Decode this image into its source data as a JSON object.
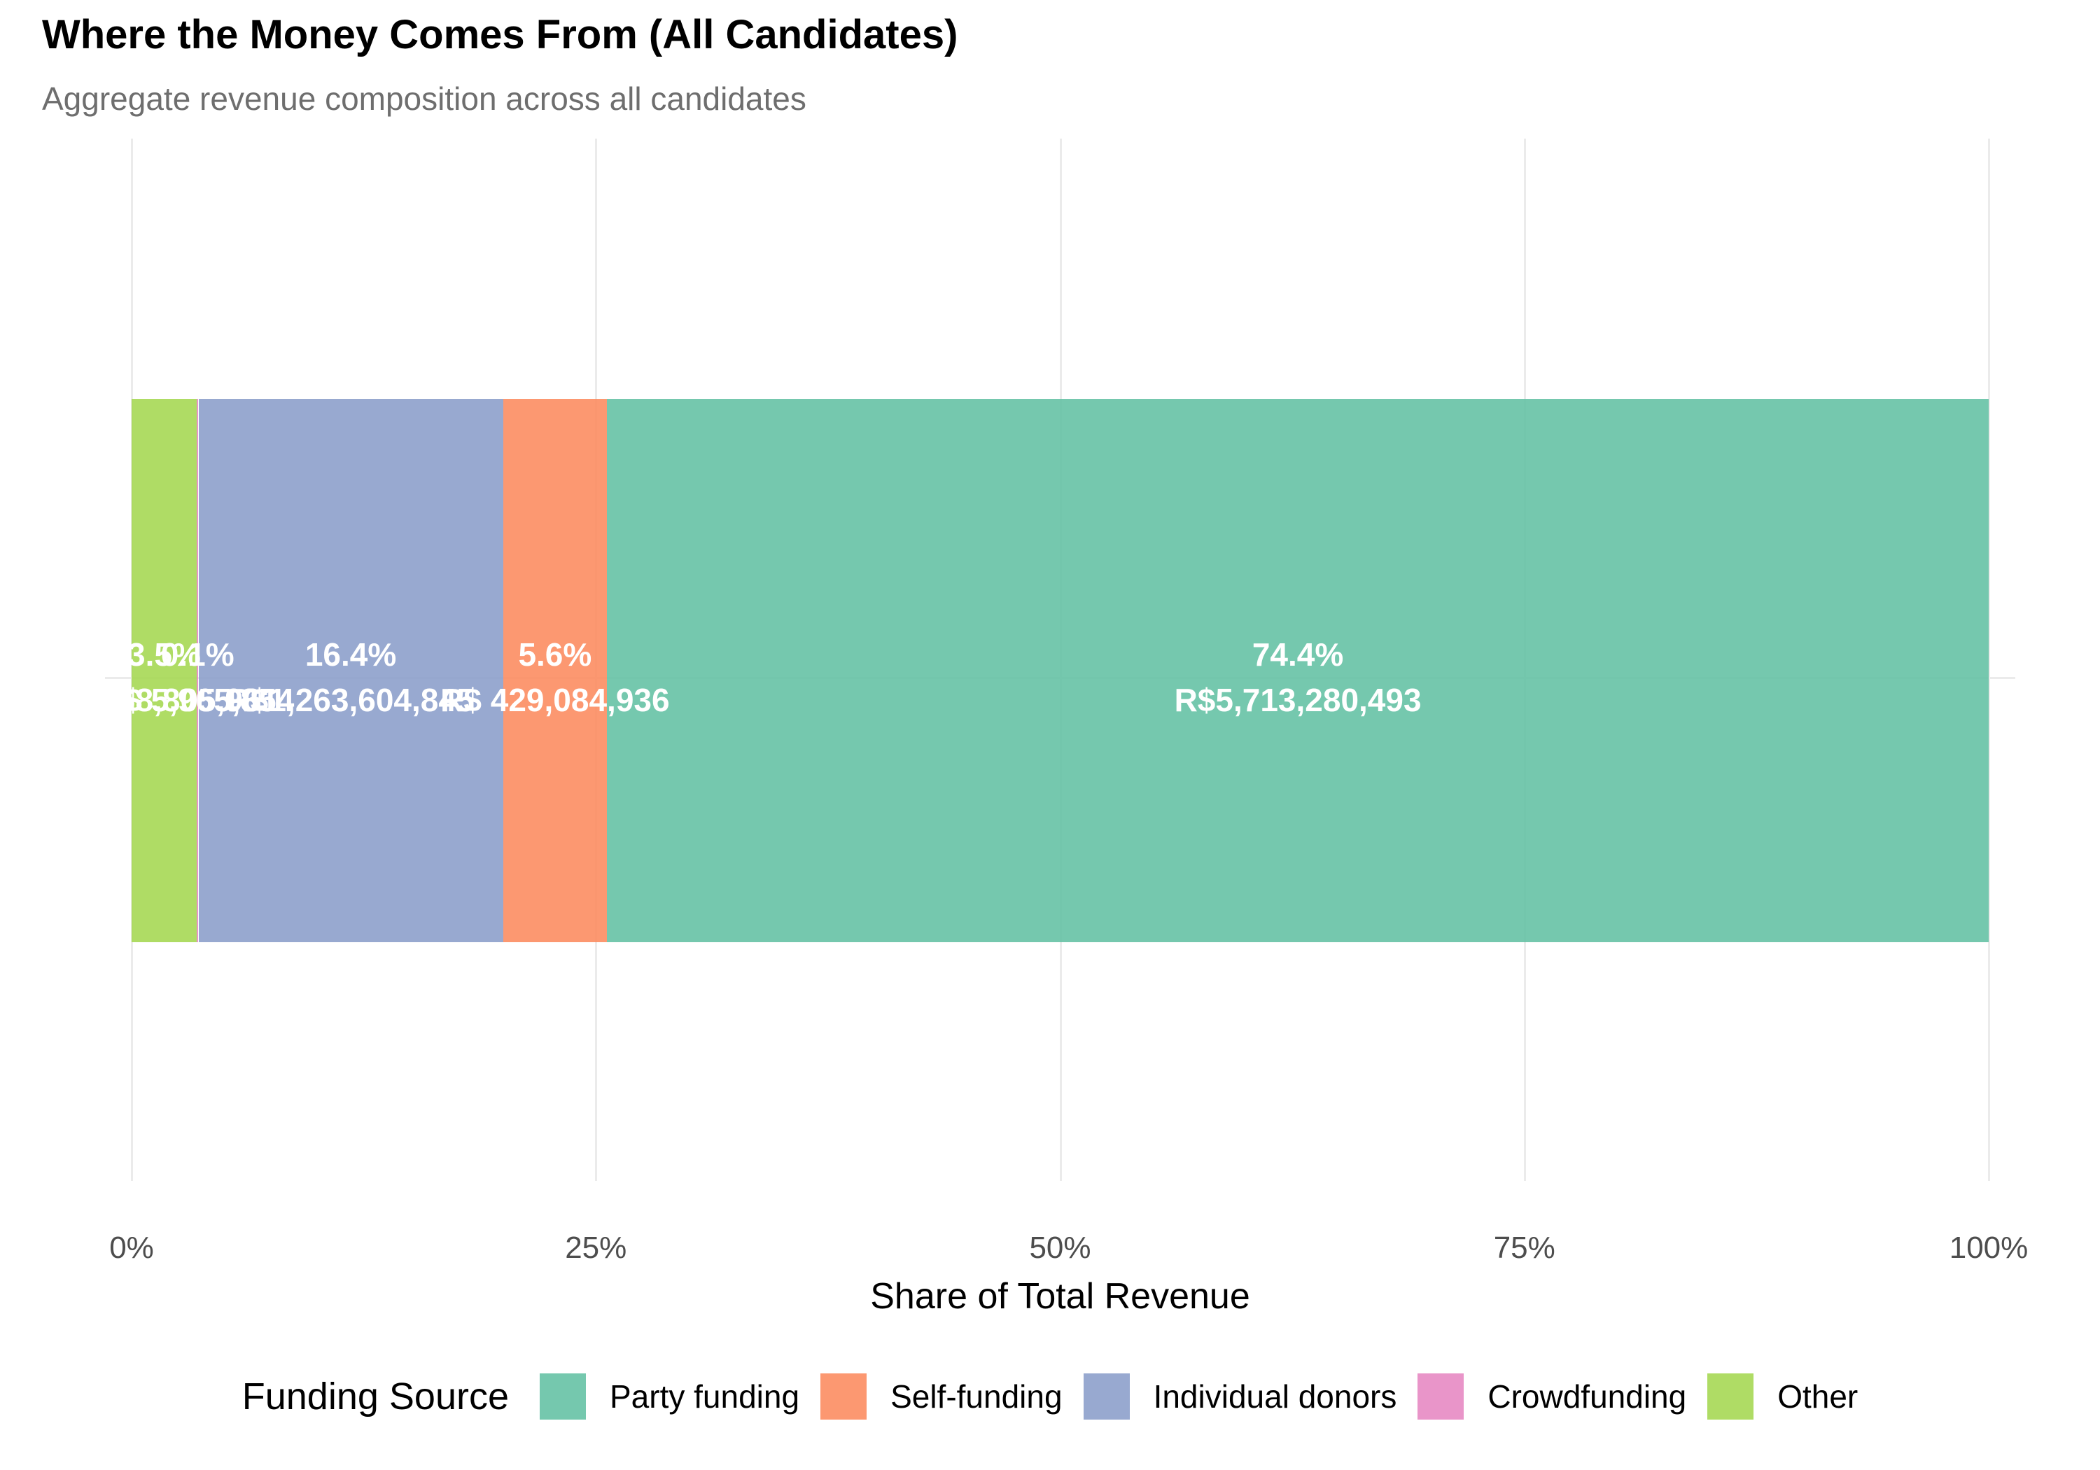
{
  "chart_data": {
    "type": "bar",
    "stacked": true,
    "orientation": "horizontal",
    "title": "Where the Money Comes From (All Candidates)",
    "subtitle": "Aggregate revenue composition across all candidates",
    "x_axis": {
      "label": "Share of Total Revenue",
      "range": [
        0,
        100
      ],
      "unit": "percent",
      "grid": "major-only",
      "ticks": [
        {
          "pos": 0,
          "label": "0%"
        },
        {
          "pos": 25,
          "label": "25%"
        },
        {
          "pos": 50,
          "label": "50%"
        },
        {
          "pos": 75,
          "label": "75%"
        },
        {
          "pos": 100,
          "label": "100%"
        }
      ]
    },
    "segments": [
      {
        "name": "Other",
        "pct": 3.5,
        "pct_label": "3.5%",
        "amount_label": "R$ 268,805,961",
        "color": "rgba(166,216,84,0.9)",
        "base_color": "#A6D854"
      },
      {
        "name": "Crowdfunding",
        "pct": 0.1,
        "pct_label": "0.1%",
        "amount_label": "R$ 5,965,854",
        "color": "rgba(231,138,195,0.9)",
        "base_color": "#E78AC3"
      },
      {
        "name": "Individual donors",
        "pct": 16.4,
        "pct_label": "16.4%",
        "amount_label": "R$1,263,604,845",
        "color": "rgba(141,160,203,0.9)",
        "base_color": "#8DA0CB"
      },
      {
        "name": "Self-funding",
        "pct": 5.6,
        "pct_label": "5.6%",
        "amount_label": "R$ 429,084,936",
        "color": "rgba(252,141,98,0.9)",
        "base_color": "#FC8D62"
      },
      {
        "name": "Party funding",
        "pct": 74.4,
        "pct_label": "74.4%",
        "amount_label": "R$5,713,280,493",
        "color": "rgba(102,194,165,0.9)",
        "base_color": "#66C2A5"
      }
    ],
    "legend": {
      "title": "Funding Source",
      "position": "bottom",
      "items": [
        {
          "name": "Party funding",
          "color": "rgba(102,194,165,0.9)"
        },
        {
          "name": "Self-funding",
          "color": "rgba(252,141,98,0.9)"
        },
        {
          "name": "Individual donors",
          "color": "rgba(141,160,203,0.9)"
        },
        {
          "name": "Crowdfunding",
          "color": "rgba(231,138,195,0.9)"
        },
        {
          "name": "Other",
          "color": "rgba(166,216,84,0.9)"
        }
      ]
    },
    "colors": {
      "background": "#FFFFFF",
      "gridline": "#EBEBEB",
      "tick_label": "#4D4D4D",
      "subtitle": "#6E6E6E",
      "bar_label_text": "#FFFFFF"
    }
  }
}
